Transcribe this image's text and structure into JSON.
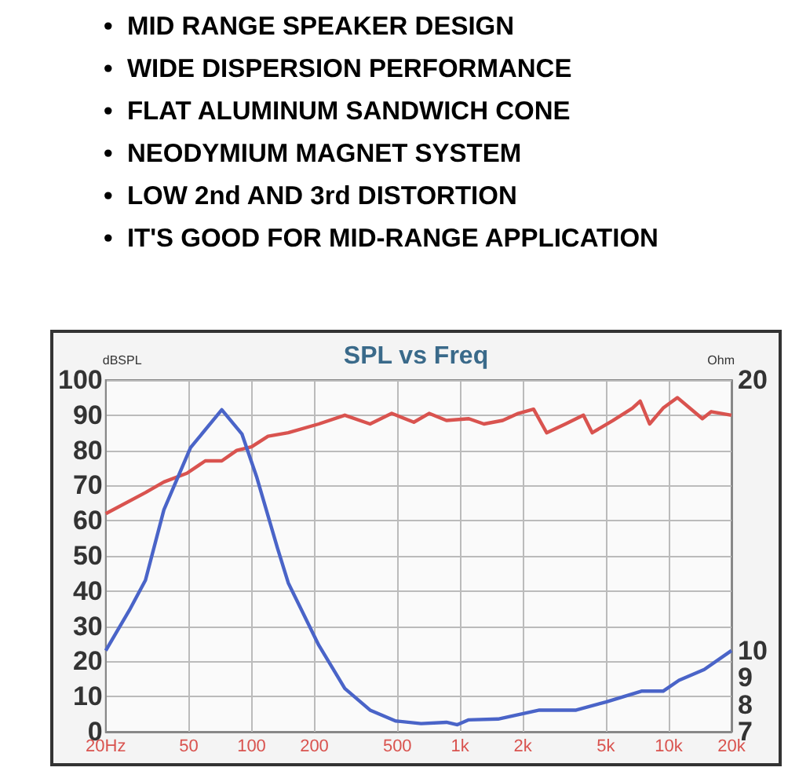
{
  "chart_data": {
    "type": "line",
    "title": "SPL vs Freq",
    "ylabel": "dBSPL",
    "y2label": "Ohm",
    "annotations": [
      "•  MID RANGE SPEAKER DESIGN",
      "•  WIDE DISPERSION PERFORMANCE",
      "•  FLAT ALUMINUM SANDWICH CONE",
      "•  NEODYMIUM MAGNET SYSTEM",
      "•  LOW 2nd AND 3rd DISTORTION",
      "•  IT'S GOOD FOR MID-RANGE APPLICATION"
    ],
    "log": "x",
    "grid": true,
    "xlim": [
      20,
      20000
    ],
    "xticks": [
      {
        "value": 20,
        "label": "20Hz"
      },
      50,
      100,
      200,
      500,
      {
        "value": 1000,
        "label": "1k"
      },
      {
        "value": 2000,
        "label": "2k"
      },
      {
        "value": 5000,
        "label": "5k"
      },
      {
        "value": 10000,
        "label": "10k"
      },
      {
        "value": 20000,
        "label": "20k"
      }
    ],
    "ylim": [
      0,
      100
    ],
    "yticks": [
      0,
      10,
      20,
      30,
      40,
      50,
      60,
      70,
      80,
      90,
      100
    ],
    "y2lim": [
      7,
      20
    ],
    "y2ticks": [
      7,
      8,
      9,
      10,
      20
    ],
    "series": [
      {
        "color": "#d9534f",
        "x": [
          20,
          31,
          38,
          49,
          60,
          72,
          85,
          100,
          120,
          150,
          210,
          280,
          370,
          470,
          600,
          710,
          860,
          1100,
          1300,
          1600,
          1900,
          2250,
          2600,
          3200,
          3900,
          4300,
          5400,
          6700,
          7300,
          8100,
          9400,
          11000,
          14500,
          16000,
          20000
        ],
        "values": [
          62,
          68,
          71,
          73.5,
          77,
          77,
          80,
          81,
          84,
          85,
          87.5,
          90,
          87.5,
          90.5,
          88,
          90.5,
          88.5,
          89,
          87.5,
          88.5,
          90.5,
          91.7,
          85,
          87.5,
          90,
          85,
          88.5,
          92,
          94,
          87.5,
          92,
          95,
          89,
          91,
          90
        ]
      },
      {
        "color": "#4a64c8",
        "axis": "y2",
        "x": [
          20,
          26,
          31,
          38,
          51,
          72,
          90,
          106,
          133,
          150,
          210,
          280,
          370,
          490,
          650,
          860,
          970,
          1100,
          1520,
          2400,
          3600,
          5000,
          7400,
          9400,
          11200,
          14800,
          20000
        ],
        "values": [
          10.0,
          11.5,
          12.6,
          15.2,
          17.5,
          18.9,
          18.0,
          16.4,
          13.8,
          12.5,
          10.2,
          8.6,
          7.8,
          7.4,
          7.3,
          7.35,
          7.26,
          7.44,
          7.47,
          7.8,
          7.8,
          8.1,
          8.5,
          8.5,
          8.9,
          9.3,
          10.0
        ]
      }
    ]
  }
}
